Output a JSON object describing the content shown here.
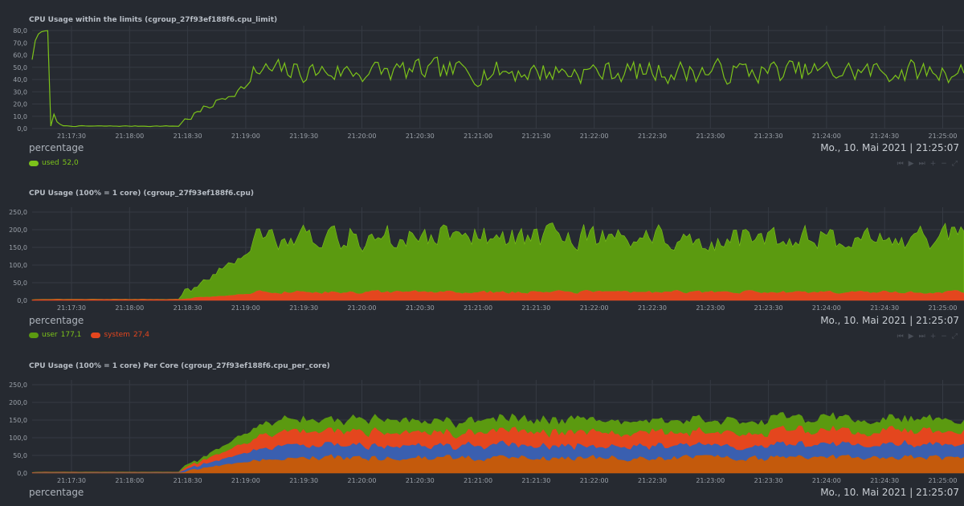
{
  "charts": [
    {
      "title": "CPU Usage within the limits (cgroup_27f93ef188f6.cpu_limit)",
      "units": "percentage",
      "datetime": "Mo., 10. Mai 2021 | 21:25:07",
      "y_ticks": [
        "0,0",
        "10,0",
        "20,0",
        "30,0",
        "40,0",
        "50,0",
        "60,0",
        "70,0",
        "80,0"
      ],
      "legend": [
        {
          "name": "used",
          "value": "52,0",
          "color": "#7cc31a"
        }
      ]
    },
    {
      "title": "CPU Usage (100% = 1 core) (cgroup_27f93ef188f6.cpu)",
      "units": "percentage",
      "datetime": "Mo., 10. Mai 2021 | 21:25:07",
      "y_ticks": [
        "0,0",
        "50,0",
        "100,0",
        "150,0",
        "200,0",
        "250,0"
      ],
      "legend": [
        {
          "name": "user",
          "value": "177,1",
          "color": "#5b9a10"
        },
        {
          "name": "system",
          "value": "27,4",
          "color": "#e4461e"
        }
      ]
    },
    {
      "title": "CPU Usage (100% = 1 core) Per Core (cgroup_27f93ef188f6.cpu_per_core)",
      "units": "percentage",
      "datetime": "Mo., 10. Mai 2021 | 21:25:07",
      "y_ticks": [
        "0,0",
        "50,0",
        "100,0",
        "150,0",
        "200,0",
        "250,0"
      ],
      "legend": []
    }
  ],
  "x_ticks": [
    "21:17:30",
    "21:18:00",
    "21:18:30",
    "21:19:00",
    "21:19:30",
    "21:20:00",
    "21:20:30",
    "21:21:00",
    "21:21:30",
    "21:22:00",
    "21:22:30",
    "21:23:00",
    "21:23:30",
    "21:24:00",
    "21:24:30",
    "21:25:00"
  ],
  "controls": [
    "⏮",
    "▶",
    "⏭",
    "+",
    "−",
    "⤢"
  ],
  "colors": {
    "bg": "#262a31",
    "grid": "#353a43",
    "green_line": "#7cc31a",
    "green_area": "#5b9a10",
    "red": "#e4461e",
    "blue": "#3a5fb0",
    "orange": "#c45a0c"
  }
}
